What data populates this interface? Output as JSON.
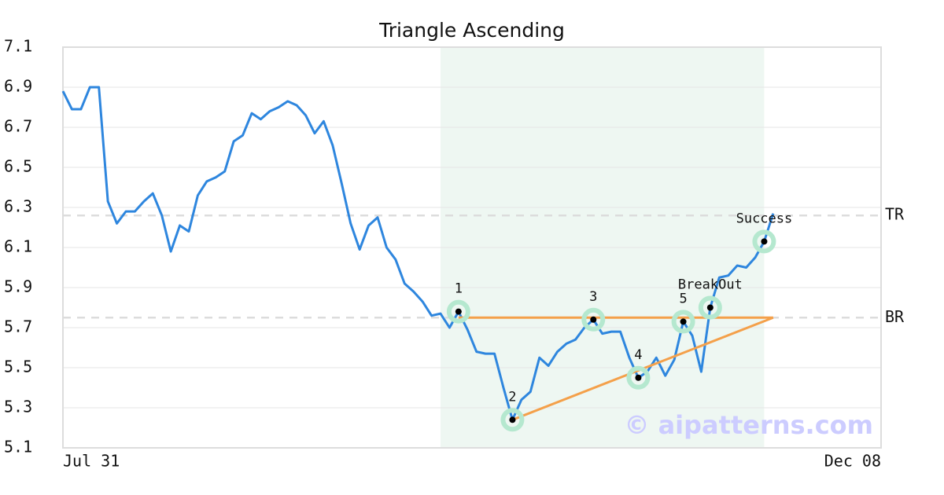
{
  "chart_data": {
    "type": "line",
    "title": "Triangle Ascending",
    "watermark": "© aipatterns.com",
    "categories": [
      "Jul 31",
      null,
      null,
      null,
      null,
      null,
      null,
      null,
      null,
      null,
      null,
      null,
      null,
      null,
      null,
      null,
      null,
      null,
      null,
      null,
      null,
      null,
      null,
      null,
      null,
      null,
      null,
      null,
      null,
      null,
      null,
      null,
      null,
      null,
      null,
      null,
      null,
      null,
      null,
      null,
      null,
      null,
      null,
      null,
      null,
      null,
      null,
      null,
      null,
      null,
      null,
      null,
      null,
      null,
      null,
      null,
      null,
      null,
      null,
      null,
      null,
      null,
      null,
      null,
      null,
      null,
      null,
      null,
      null,
      null,
      null,
      null,
      null,
      null,
      null,
      null,
      null,
      null,
      null,
      null,
      null,
      null,
      null,
      null,
      null,
      null,
      null,
      null,
      null,
      null,
      null,
      "Dec 08"
    ],
    "series": [
      {
        "color": "#2e86de",
        "values": [
          6.88,
          6.79,
          6.79,
          6.9,
          6.9,
          6.33,
          6.22,
          6.28,
          6.28,
          6.33,
          6.37,
          6.26,
          6.08,
          6.21,
          6.18,
          6.36,
          6.43,
          6.45,
          6.48,
          6.63,
          6.66,
          6.77,
          6.74,
          6.78,
          6.8,
          6.83,
          6.81,
          6.76,
          6.67,
          6.73,
          6.61,
          6.42,
          6.22,
          6.09,
          6.21,
          6.25,
          6.1,
          6.04,
          5.92,
          5.88,
          5.83,
          5.76,
          5.77,
          5.7,
          5.78,
          5.69,
          5.58,
          5.57,
          5.57,
          5.4,
          5.24,
          5.34,
          5.38,
          5.55,
          5.51,
          5.58,
          5.62,
          5.64,
          5.7,
          5.74,
          5.67,
          5.68,
          5.68,
          5.55,
          5.45,
          5.48,
          5.55,
          5.46,
          5.54,
          5.73,
          5.66,
          5.48,
          5.8,
          5.95,
          5.96,
          6.01,
          6.0,
          6.05,
          6.13,
          6.27,
          null,
          null,
          null,
          null,
          null,
          null,
          null,
          null,
          null,
          null,
          null,
          null
        ]
      }
    ],
    "ylim": [
      5.1,
      7.1
    ],
    "yticks": [
      5.1,
      5.3,
      5.5,
      5.7,
      5.9,
      6.1,
      6.3,
      6.5,
      6.7,
      6.9,
      7.1
    ],
    "grid": true,
    "shade": {
      "start": 42,
      "end": 78,
      "color": "#eef7f2"
    },
    "levels": [
      {
        "label": "TR",
        "value": 6.26
      },
      {
        "label": "BR",
        "value": 5.75
      }
    ],
    "trendlines": [
      {
        "x": [
          44,
          79
        ],
        "y": [
          5.75,
          5.75
        ]
      },
      {
        "x": [
          50,
          79
        ],
        "y": [
          5.24,
          5.75
        ]
      }
    ],
    "trend_color": "#f4a04a",
    "points": [
      {
        "label": "1",
        "index": 44
      },
      {
        "label": "2",
        "index": 50
      },
      {
        "label": "3",
        "index": 59
      },
      {
        "label": "4",
        "index": 64
      },
      {
        "label": "5",
        "index": 69
      },
      {
        "label": "BreakOut",
        "index": 72
      },
      {
        "label": "Success",
        "index": 78
      }
    ]
  }
}
